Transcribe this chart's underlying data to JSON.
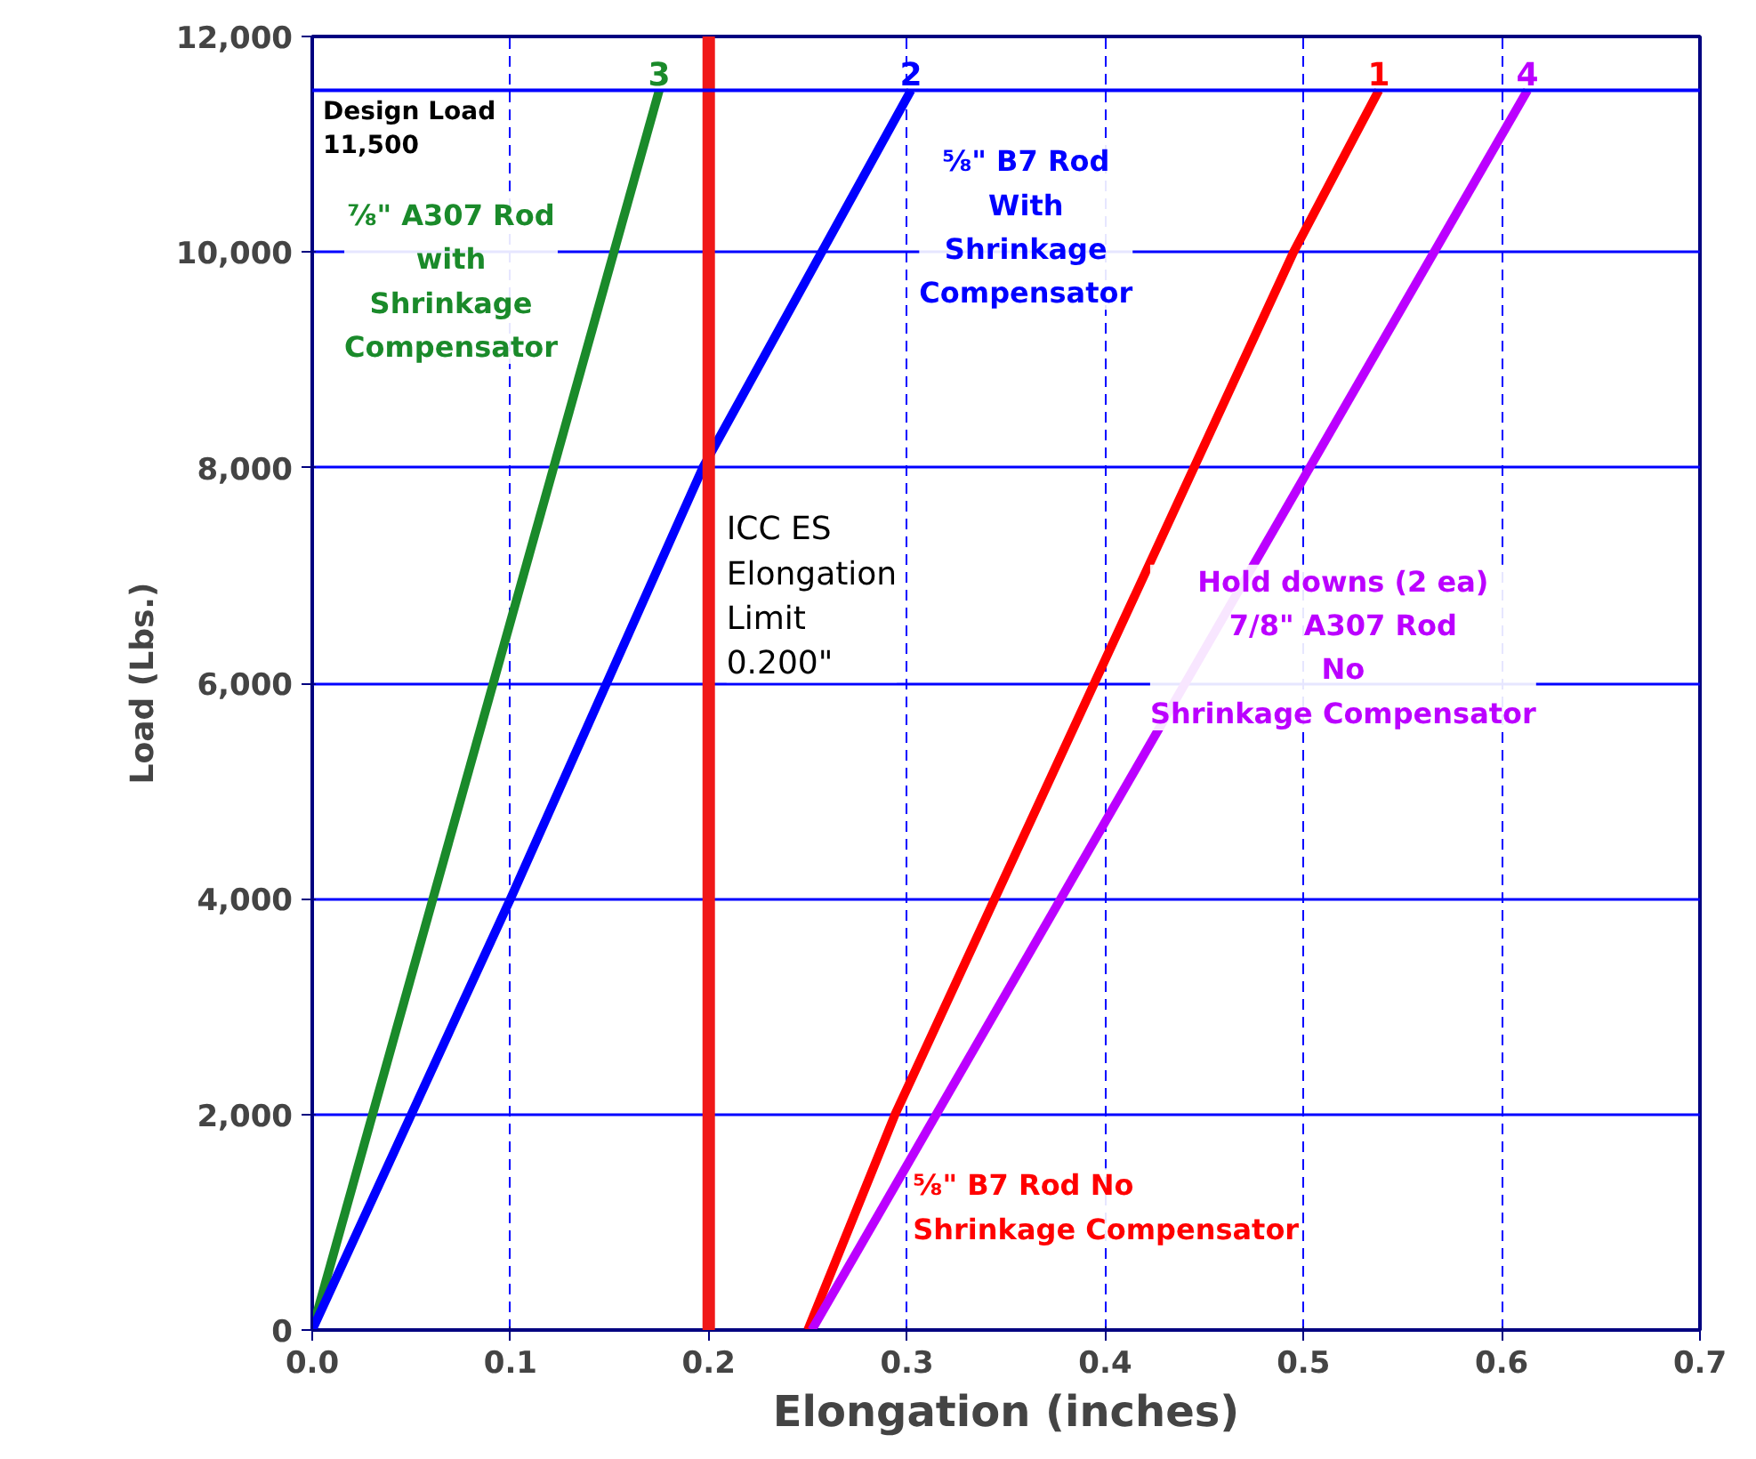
{
  "chart_data": {
    "type": "line",
    "xlabel": "Elongation (inches)",
    "ylabel": "Load (Lbs.)",
    "xlim": [
      0,
      0.7
    ],
    "ylim": [
      0,
      12000
    ],
    "xticks": [
      {
        "value": 0,
        "label": "0.0"
      },
      0.1,
      0.2,
      0.3,
      0.4,
      0.5,
      0.6,
      0.7
    ],
    "yticks": [
      0,
      {
        "value": 2000,
        "label": "2,000"
      },
      {
        "value": 4000,
        "label": "4,000"
      },
      {
        "value": 6000,
        "label": "6,000"
      },
      {
        "value": 8000,
        "label": "8,000"
      },
      {
        "value": 10000,
        "label": "10,000"
      },
      {
        "value": 12000,
        "label": "12,000"
      }
    ],
    "grid": true,
    "legend": false,
    "marker": "none",
    "line_style": "solid",
    "series": [
      {
        "name": "⅞\" A307 Rod\nwith\nShrinkage\nCompensator",
        "color": "#1a8a2a",
        "x": [
          0,
          0.175
        ],
        "values": [
          0,
          11500
        ]
      },
      {
        "name": "⅝\" B7 Rod\nWith\nShrinkage\nCompensator",
        "color": "#0000ff",
        "x": [
          0,
          0.1,
          0.197,
          0.302
        ],
        "values": [
          0,
          4000,
          8000,
          11500
        ]
      },
      {
        "name": "⅝\" B7 Rod No\nShrinkage Compensator",
        "color": "#ff0000",
        "x": [
          0.25,
          0.294,
          0.495,
          0.538
        ],
        "values": [
          0,
          2000,
          10000,
          11500
        ]
      },
      {
        "name": "Hold downs (2 ea)\n7/8\" A307 Rod\nNo\nShrinkage Compensator",
        "color": "#bb00ff",
        "x": [
          0.252,
          0.613
        ],
        "values": [
          0,
          11500
        ]
      }
    ],
    "ref_lines": [
      {
        "axis": "x",
        "value": 0.2,
        "label": "ICC ES\nElongation\nLimit\n0.200\"",
        "color": "#f01818"
      },
      {
        "axis": "y",
        "value": 11500,
        "label": "Design Load\n11,500",
        "color": "#0000ff"
      }
    ],
    "annotations": [
      {
        "text": "3",
        "x": 0.175,
        "y": 11500
      },
      {
        "text": "2",
        "x": 0.302,
        "y": 11500
      },
      {
        "text": "1",
        "x": 0.538,
        "y": 11500
      },
      {
        "text": "4",
        "x": 0.613,
        "y": 11500
      }
    ]
  }
}
